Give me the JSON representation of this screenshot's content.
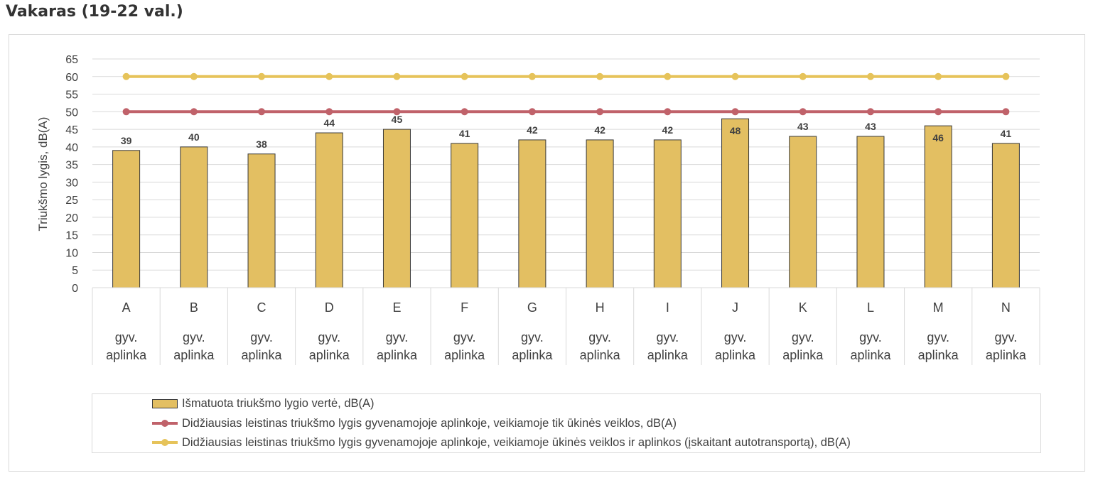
{
  "page": {
    "title": "Vakaras (19-22 val.)"
  },
  "colors": {
    "bar": "#e3bf62",
    "bar_border": "#3a3a3a",
    "limit_red": "#c0626a",
    "limit_yellow": "#e6c35a",
    "grid": "#d9d9d9"
  },
  "chart_data": {
    "type": "bar",
    "title": "",
    "ylabel": "Triukšmo lygis, dB(A)",
    "xlabel": "",
    "ylim": [
      0,
      65
    ],
    "ytick_step": 5,
    "yticks": [
      "0",
      "5",
      "10",
      "15",
      "20",
      "25",
      "30",
      "35",
      "40",
      "45",
      "50",
      "55",
      "60",
      "65"
    ],
    "categories": [
      "A",
      "B",
      "C",
      "D",
      "E",
      "F",
      "G",
      "H",
      "I",
      "J",
      "K",
      "L",
      "M",
      "N"
    ],
    "category_sublabel": [
      "gyv.",
      "aplinka"
    ],
    "grid": true,
    "legend_position": "bottom",
    "series": [
      {
        "name": "Išmatuota triukšmo lygio vertė, dB(A)",
        "kind": "bar",
        "values": [
          39,
          40,
          38,
          44,
          45,
          41,
          42,
          42,
          42,
          48,
          43,
          43,
          46,
          41
        ],
        "data_labels": [
          "39",
          "40",
          "38",
          "44",
          "45",
          "41",
          "42",
          "42",
          "42",
          "48",
          "43",
          "43",
          "46",
          "41"
        ]
      },
      {
        "name": "Didžiausias leistinas triukšmo lygis gyvenamojoje aplinkoje, veikiamoje tik ūkinės veiklos,  dB(A)",
        "kind": "line",
        "values": [
          50,
          50,
          50,
          50,
          50,
          50,
          50,
          50,
          50,
          50,
          50,
          50,
          50,
          50
        ]
      },
      {
        "name": "Didžiausias leistinas triukšmo lygis gyvenamojoje aplinkoje, veikiamoje ūkinės veiklos ir aplinkos (įskaitant autotransportą),  dB(A)",
        "kind": "line",
        "values": [
          60,
          60,
          60,
          60,
          60,
          60,
          60,
          60,
          60,
          60,
          60,
          60,
          60,
          60
        ]
      }
    ]
  }
}
